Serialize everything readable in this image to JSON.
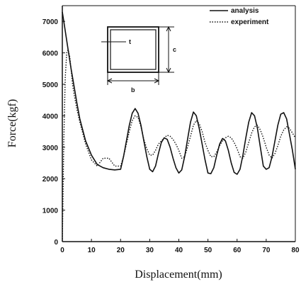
{
  "chart_data": {
    "type": "line",
    "xlabel": "Displacement(mm)",
    "ylabel": "Force(kgf)",
    "xlim": [
      0,
      80
    ],
    "ylim": [
      0,
      7500
    ],
    "x_ticks": [
      "0",
      "10",
      "20",
      "30",
      "40",
      "50",
      "60",
      "70",
      "80"
    ],
    "y_ticks": [
      "0",
      "1000",
      "2000",
      "3000",
      "4000",
      "5000",
      "6000",
      "7000"
    ],
    "grid": false,
    "legend_position": "top-right",
    "series": [
      {
        "name": "analysis",
        "style": "solid",
        "x": [
          0,
          0.5,
          1,
          2,
          3,
          4,
          5,
          6,
          8,
          10,
          12,
          14,
          16,
          18,
          20,
          21,
          22,
          23,
          24,
          25,
          26,
          27,
          28,
          29,
          30,
          31,
          32,
          33,
          34,
          35,
          36,
          37,
          38,
          39,
          40,
          41,
          42,
          43,
          44,
          45,
          46,
          47,
          48,
          49,
          50,
          51,
          52,
          53,
          54,
          55,
          56,
          57,
          58,
          59,
          60,
          61,
          62,
          63,
          64,
          65,
          66,
          67,
          68,
          69,
          70,
          71,
          72,
          73,
          74,
          75,
          76,
          77,
          78,
          79,
          80
        ],
        "y": [
          7300,
          7000,
          6700,
          6100,
          5500,
          4950,
          4400,
          3900,
          3200,
          2750,
          2450,
          2350,
          2300,
          2280,
          2300,
          2700,
          3200,
          3700,
          4080,
          4230,
          4080,
          3700,
          3200,
          2700,
          2300,
          2220,
          2400,
          2800,
          3150,
          3300,
          3250,
          3000,
          2650,
          2350,
          2180,
          2280,
          2700,
          3250,
          3800,
          4120,
          4000,
          3600,
          3100,
          2600,
          2180,
          2160,
          2350,
          2750,
          3100,
          3280,
          3200,
          2900,
          2500,
          2200,
          2140,
          2300,
          2750,
          3300,
          3800,
          4100,
          4000,
          3600,
          3000,
          2400,
          2300,
          2350,
          2700,
          3200,
          3700,
          4050,
          4100,
          3900,
          3400,
          2900,
          2300
        ]
      },
      {
        "name": "experiment",
        "style": "dotted",
        "x": [
          0,
          0.5,
          1,
          1.5,
          2,
          2.5,
          3,
          3.5,
          4,
          5,
          6,
          8,
          10,
          12,
          14,
          16,
          18,
          20,
          21,
          22,
          23,
          24,
          25,
          26,
          27,
          28,
          29,
          30,
          31,
          32,
          33,
          34,
          35,
          36,
          37,
          38,
          39,
          40,
          41,
          42,
          43,
          44,
          45,
          46,
          47,
          48,
          49,
          50,
          51,
          52,
          53,
          54,
          55,
          56,
          57,
          58,
          59,
          60,
          61,
          62,
          63,
          64,
          65,
          66,
          67,
          68,
          69,
          70,
          71,
          72,
          73,
          74,
          75,
          76,
          77,
          78,
          79,
          80
        ],
        "y": [
          0,
          3200,
          5200,
          6000,
          6100,
          5900,
          5500,
          5000,
          4700,
          4200,
          3800,
          3100,
          2600,
          2400,
          2650,
          2650,
          2400,
          2400,
          2700,
          3100,
          3500,
          3850,
          4000,
          3950,
          3650,
          3250,
          2950,
          2750,
          2750,
          2900,
          3100,
          3200,
          3300,
          3380,
          3350,
          3250,
          3100,
          2900,
          2650,
          2700,
          3000,
          3350,
          3700,
          3850,
          3750,
          3500,
          3150,
          2900,
          2700,
          2700,
          2850,
          3050,
          3200,
          3300,
          3350,
          3300,
          3150,
          2950,
          2700,
          2650,
          2850,
          3150,
          3450,
          3650,
          3700,
          3550,
          3300,
          3000,
          2750,
          2650,
          2800,
          3050,
          3350,
          3550,
          3650,
          3600,
          3450,
          3300
        ]
      }
    ],
    "inset": {
      "labels": [
        "t",
        "c",
        "b"
      ]
    }
  }
}
